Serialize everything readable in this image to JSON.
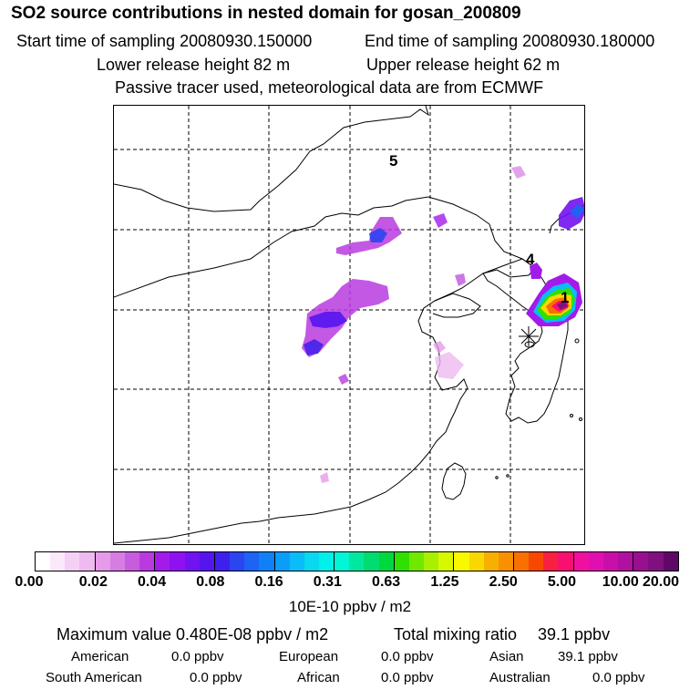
{
  "header": {
    "title": "SO2 source contributions in nested domain for gosan_200809",
    "start_sampling": "Start time of sampling 20080930.150000",
    "end_sampling": "End time of sampling 20080930.180000",
    "lower_release": "Lower release height   82 m",
    "upper_release": "Upper release height   62 m",
    "tracer_note": "Passive tracer used, meteorological data are from ECMWF"
  },
  "map": {
    "source_labels": [
      {
        "id": "5",
        "label": "5"
      },
      {
        "id": "4",
        "label": "4"
      },
      {
        "id": "1",
        "label": "1"
      }
    ],
    "receptor": "gosan-station-star"
  },
  "colorbar": {
    "colors": [
      "#ffffff",
      "#fbe8fb",
      "#f5d0f5",
      "#eebaf0",
      "#e59be9",
      "#d77ce3",
      "#c85cdf",
      "#b93be0",
      "#a31bea",
      "#8f10f0",
      "#7212f0",
      "#5515ee",
      "#3d20ec",
      "#2b45f0",
      "#1d63f4",
      "#1080f6",
      "#0b9ef8",
      "#0abcf8",
      "#08d8f0",
      "#00f0ec",
      "#00f6d4",
      "#00e8a0",
      "#00dc70",
      "#00d840",
      "#30e000",
      "#70e800",
      "#a8f000",
      "#d8f800",
      "#f8f800",
      "#f8d800",
      "#f8b000",
      "#f89000",
      "#f87000",
      "#f84800",
      "#f82040",
      "#f81070",
      "#f010a0",
      "#e010b0",
      "#c810a8",
      "#b010a0",
      "#981090",
      "#801080",
      "#600868"
    ],
    "ticks": [
      "0.00",
      "0.02",
      "0.04",
      "0.08",
      "0.16",
      "0.31",
      "0.63",
      "1.25",
      "2.50",
      "5.00",
      "10.00",
      "20.00"
    ],
    "unit": "10E-10 ppbv / m2"
  },
  "stats": {
    "max_value": "Maximum value  0.480E-08 ppbv / m2",
    "total_label": "Total mixing ratio",
    "total_value": "39.1 ppbv",
    "regions": [
      {
        "name": "American",
        "value": "0.0 ppbv"
      },
      {
        "name": "European",
        "value": "0.0 ppbv"
      },
      {
        "name": "Asian",
        "value": "39.1 ppbv"
      },
      {
        "name": "South American",
        "value": "0.0 ppbv"
      },
      {
        "name": "African",
        "value": "0.0 ppbv"
      },
      {
        "name": "Australian",
        "value": "0.0 ppbv"
      }
    ]
  }
}
